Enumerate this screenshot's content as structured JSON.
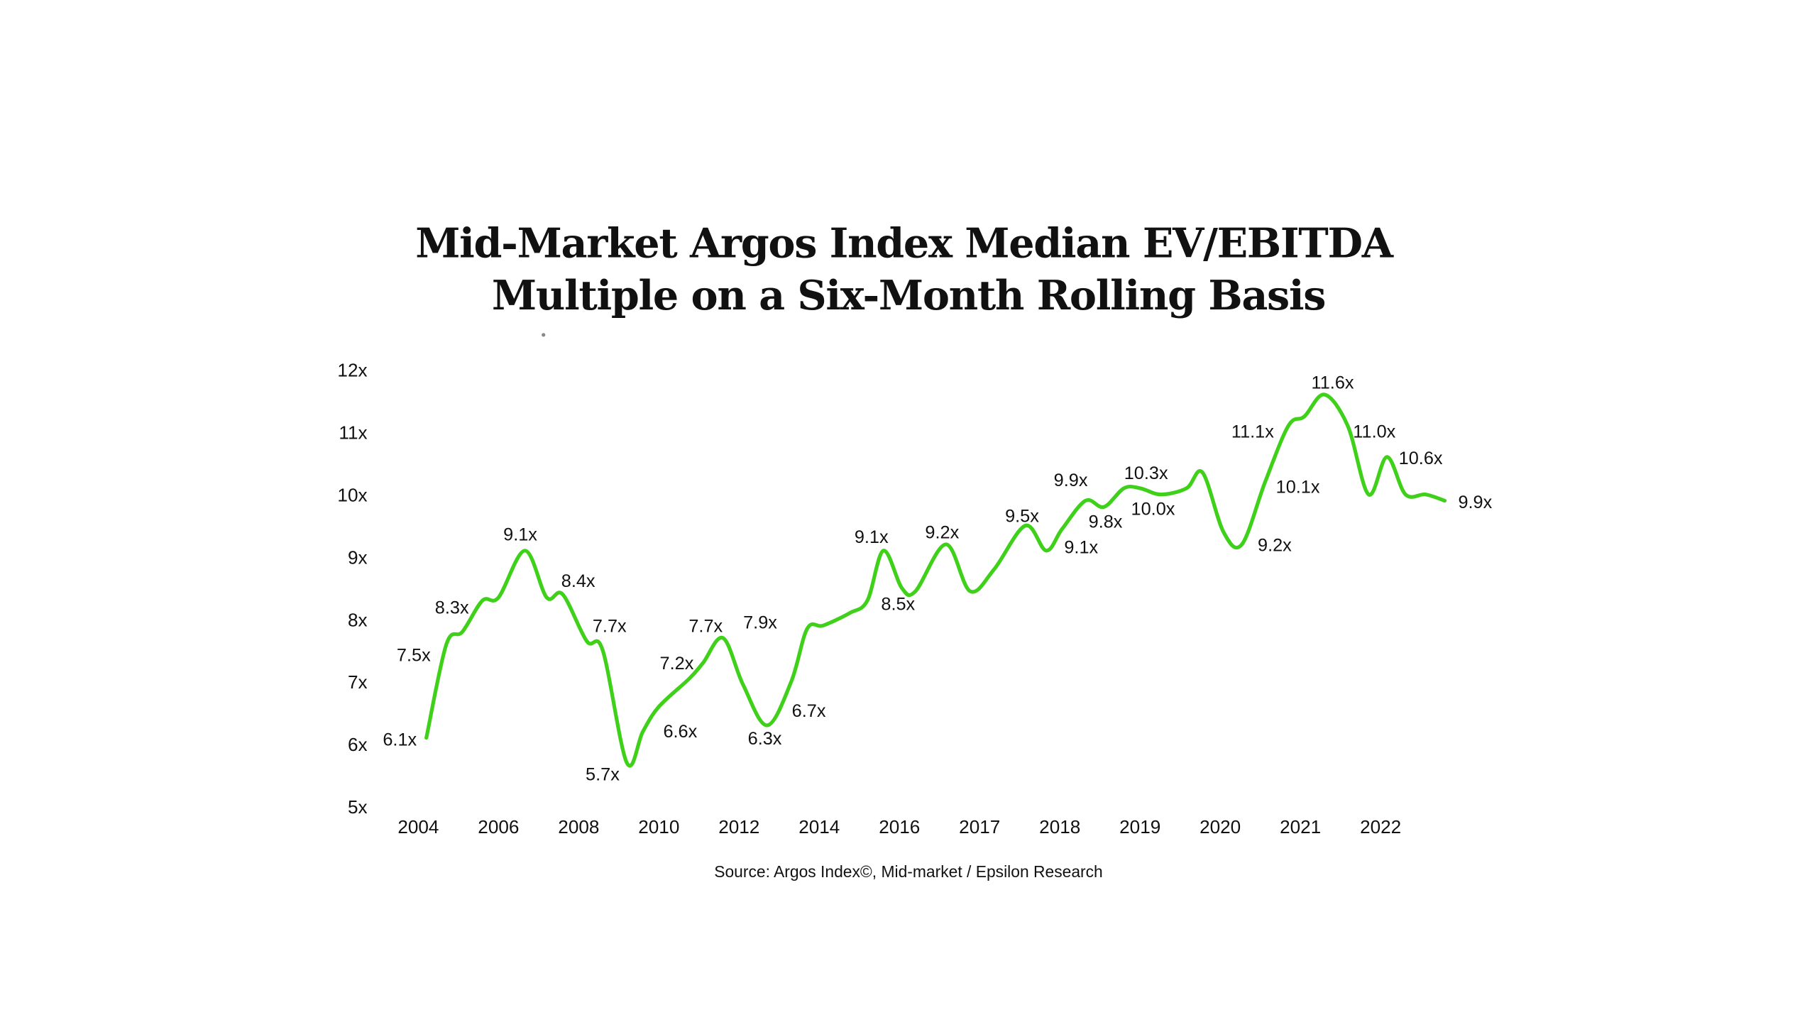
{
  "chart_data": {
    "type": "line",
    "title_lines": [
      "Mid-Market Argos Index Median EV/EBITDA",
      "Multiple on a Six-Month Rolling Basis"
    ],
    "source": "Source: Argos Index©, Mid-market / Epsilon Research",
    "xlabel": "",
    "ylabel": "",
    "x_ticks": [
      "2004",
      "2006",
      "2008",
      "2010",
      "2012",
      "2014",
      "2016",
      "2017",
      "2018",
      "2019",
      "2020",
      "2021",
      "2022"
    ],
    "y_ticks": [
      "5x",
      "6x",
      "7x",
      "8x",
      "9x",
      "10x",
      "11x",
      "12x"
    ],
    "ylim": [
      5,
      12
    ],
    "grid": false,
    "legend": "none",
    "line_color": "#3fd11a",
    "series": [
      {
        "x": [
          2004.2,
          2004.7,
          2005.1,
          2005.6,
          2006.0,
          2006.66,
          2007.2,
          2007.6,
          2008.2,
          2008.6,
          2009.2,
          2009.6,
          2010.0,
          2010.76,
          2011.1,
          2011.6,
          2012.1,
          2012.7,
          2013.3,
          2013.7,
          2014.1,
          2014.76,
          2015.2,
          2015.6,
          2016.03,
          2016.2,
          2016.58,
          2016.88,
          2017.18,
          2017.57,
          2017.83,
          2018.03,
          2018.32,
          2018.55,
          2018.8,
          2019.0,
          2019.26,
          2019.58,
          2019.78,
          2020.04,
          2020.27,
          2020.56,
          2020.85,
          2021.05,
          2021.3,
          2021.59,
          2021.85,
          2022.08,
          2022.31,
          2022.56,
          2022.8
        ],
        "y": [
          6.1,
          7.6,
          7.8,
          8.3,
          8.35,
          9.1,
          8.35,
          8.4,
          7.65,
          7.5,
          5.7,
          6.2,
          6.6,
          7.05,
          7.3,
          7.7,
          6.95,
          6.3,
          7.0,
          7.85,
          7.9,
          8.1,
          8.3,
          9.1,
          8.5,
          8.45,
          9.2,
          8.45,
          8.8,
          9.5,
          9.1,
          9.45,
          9.9,
          9.8,
          10.1,
          10.1,
          10.0,
          10.1,
          10.35,
          9.4,
          9.2,
          10.2,
          11.1,
          11.25,
          11.6,
          11.1,
          10.0,
          10.6,
          10.0,
          10.0,
          9.9
        ]
      }
    ],
    "data_labels": [
      "6.1x",
      "7.5x",
      "8.3x",
      "9.1x",
      "8.4x",
      "7.7x",
      "5.7x",
      "6.6x",
      "7.2x",
      "7.7x",
      "7.9x",
      "6.3x",
      "6.7x",
      "9.1x",
      "8.5x",
      "9.2x",
      "9.5x",
      "9.9x",
      "9.1x",
      "9.8x",
      "10.3x",
      "10.0x",
      "11.1x",
      "10.1x",
      "9.2x",
      "11.6x",
      "11.0x",
      "10.6x",
      "9.9x"
    ]
  }
}
